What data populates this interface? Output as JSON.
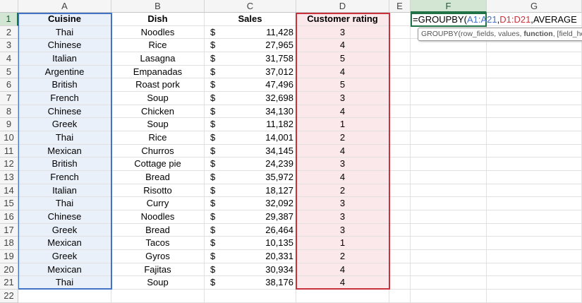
{
  "columns": [
    "A",
    "B",
    "C",
    "D",
    "E",
    "F",
    "G"
  ],
  "headers": [
    "Cuisine",
    "Dish",
    "Sales",
    "Customer rating"
  ],
  "currency_symbol": "$",
  "rows": [
    [
      "Thai",
      "Noodles",
      "11,428",
      "3"
    ],
    [
      "Chinese",
      "Rice",
      "27,965",
      "4"
    ],
    [
      "Italian",
      "Lasagna",
      "31,758",
      "5"
    ],
    [
      "Argentine",
      "Empanadas",
      "37,012",
      "4"
    ],
    [
      "British",
      "Roast pork",
      "47,496",
      "5"
    ],
    [
      "French",
      "Soup",
      "32,698",
      "3"
    ],
    [
      "Chinese",
      "Chicken",
      "34,130",
      "4"
    ],
    [
      "Greek",
      "Soup",
      "11,182",
      "1"
    ],
    [
      "Thai",
      "Rice",
      "14,001",
      "2"
    ],
    [
      "Mexican",
      "Churros",
      "34,145",
      "4"
    ],
    [
      "British",
      "Cottage pie",
      "24,239",
      "3"
    ],
    [
      "French",
      "Bread",
      "35,972",
      "4"
    ],
    [
      "Italian",
      "Risotto",
      "18,127",
      "2"
    ],
    [
      "Thai",
      "Curry",
      "32,092",
      "3"
    ],
    [
      "Chinese",
      "Noodles",
      "29,387",
      "3"
    ],
    [
      "Greek",
      "Bread",
      "26,464",
      "3"
    ],
    [
      "Mexican",
      "Tacos",
      "10,135",
      "1"
    ],
    [
      "Greek",
      "Gyros",
      "20,331",
      "2"
    ],
    [
      "Mexican",
      "Fajitas",
      "30,934",
      "4"
    ],
    [
      "Thai",
      "Soup",
      "38,176",
      "4"
    ]
  ],
  "formula": {
    "prefix": "=GROUPBY(",
    "ref1": "A1:A21",
    "sep1": ",",
    "ref2": "D1:D21",
    "rest": ",AVERAGE"
  },
  "tooltip": {
    "before": "GROUPBY(row_fields, values, ",
    "bold": "function",
    "after": ", [field_headers], ..."
  },
  "colors": {
    "ref1": "#4472c4",
    "ref2": "#c8323c",
    "active": "#217346"
  }
}
